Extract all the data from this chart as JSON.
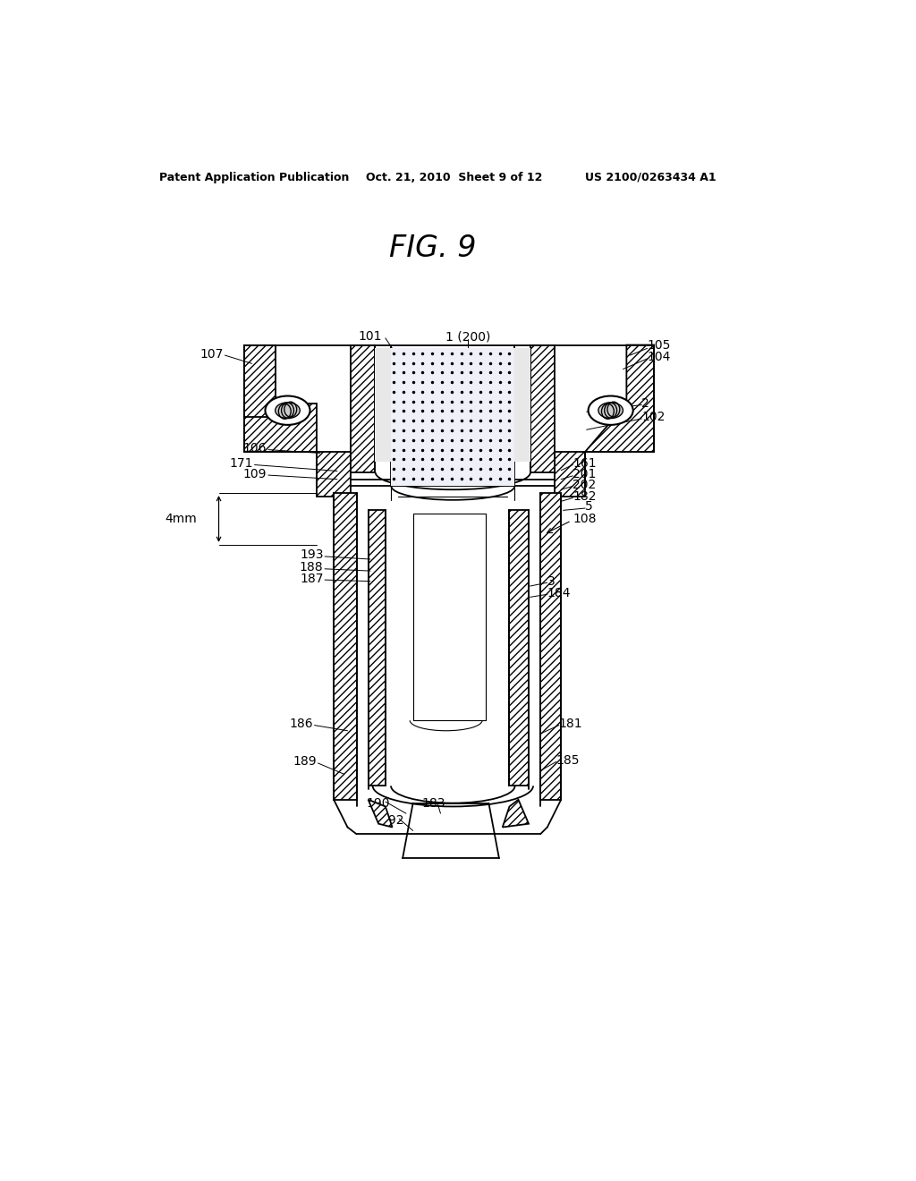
{
  "title": "FIG. 9",
  "header_left": "Patent Application Publication",
  "header_mid": "Oct. 21, 2010  Sheet 9 of 12",
  "header_right": "US 2100/0263434 A1",
  "bg_color": "#ffffff",
  "line_color": "#000000",
  "fig_title": "FIG. 9"
}
